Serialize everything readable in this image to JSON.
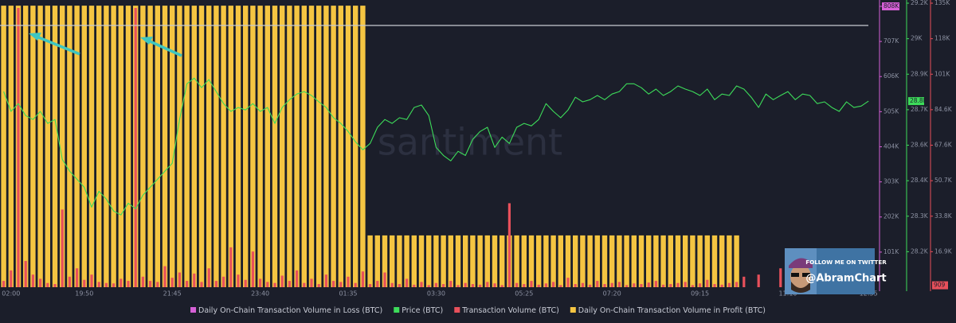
{
  "chart_data": {
    "type": "combo",
    "watermark": "santiment",
    "categories": [
      null,
      "02:00",
      null,
      null,
      null,
      null,
      null,
      null,
      null,
      null,
      null,
      "19:50",
      null,
      null,
      null,
      null,
      null,
      null,
      null,
      null,
      null,
      null,
      null,
      "21:45",
      null,
      null,
      null,
      null,
      null,
      null,
      null,
      null,
      null,
      null,
      null,
      "23:40",
      null,
      null,
      null,
      null,
      null,
      null,
      null,
      null,
      null,
      null,
      null,
      "01:35",
      null,
      null,
      null,
      null,
      null,
      null,
      null,
      null,
      null,
      null,
      null,
      "03:30",
      null,
      null,
      null,
      null,
      null,
      null,
      null,
      null,
      null,
      null,
      null,
      "05:25",
      null,
      null,
      null,
      null,
      null,
      null,
      null,
      null,
      null,
      null,
      null,
      "07:20",
      null,
      null,
      null,
      null,
      null,
      null,
      null,
      null,
      null,
      null,
      null,
      "09:15",
      null,
      null,
      null,
      null,
      null,
      null,
      null,
      null,
      null,
      null,
      null,
      "11:10",
      null,
      null,
      null,
      null,
      null,
      null,
      null,
      null,
      null,
      null,
      "12:55"
    ],
    "ylim": [
      0,
      826300
    ],
    "yticks": [
      {
        "value": 101000,
        "label": "101K"
      },
      {
        "value": 202000,
        "label": "202K"
      },
      {
        "value": 303000,
        "label": "303K"
      },
      {
        "value": 404000,
        "label": "404K"
      },
      {
        "value": 505000,
        "label": "505K"
      },
      {
        "value": 606000,
        "label": "606K"
      },
      {
        "value": 707000,
        "label": "707K"
      },
      {
        "value": 808000,
        "label": "808K"
      }
    ],
    "y2lim": [
      28010,
      29183
    ],
    "y2ticks": [
      {
        "value": 28155,
        "label": "28.2K"
      },
      {
        "value": 28300,
        "label": "28.3K"
      },
      {
        "value": 28445,
        "label": "28.4K"
      },
      {
        "value": 28590,
        "label": "28.6K"
      },
      {
        "value": 28735,
        "label": "28.7K"
      },
      {
        "value": 28880,
        "label": "28.9K"
      },
      {
        "value": 29025,
        "label": "29K"
      },
      {
        "value": 29170,
        "label": "29.2K"
      }
    ],
    "y3lim": [
      0,
      136800
    ],
    "y3ticks": [
      {
        "value": 16910,
        "label": "16.9K"
      },
      {
        "value": 33820,
        "label": "33.8K"
      },
      {
        "value": 50730,
        "label": "50.7K"
      },
      {
        "value": 67640,
        "label": "67.6K"
      },
      {
        "value": 84550,
        "label": "84.6K"
      },
      {
        "value": 101460,
        "label": "101K"
      },
      {
        "value": 118370,
        "label": "118K"
      },
      {
        "value": 135280,
        "label": "135K"
      }
    ],
    "series": [
      {
        "name": "Daily On-Chain Transaction Volume in Loss (BTC)",
        "type": "bar",
        "axis": "y",
        "color": "#d660d6",
        "values": [
          null,
          null,
          null,
          null,
          null,
          null,
          null,
          null,
          null,
          null,
          null,
          null,
          null,
          null,
          null,
          null,
          null,
          null,
          null,
          null,
          null,
          null,
          null,
          null,
          null,
          null,
          null,
          null,
          null,
          null,
          null,
          null,
          null,
          null,
          null,
          null,
          null,
          null,
          null,
          null,
          null,
          null,
          null,
          null,
          null,
          null,
          null,
          null,
          null,
          null,
          null,
          null,
          null,
          null,
          null,
          null,
          null,
          null,
          null,
          null,
          null,
          null,
          null,
          null,
          null,
          null,
          null,
          null,
          null,
          null,
          null,
          null,
          null,
          null,
          null,
          null,
          null,
          null,
          null,
          null,
          null,
          null,
          null,
          null,
          null,
          null,
          null,
          null,
          null,
          null,
          null,
          null,
          null,
          null,
          null,
          null,
          null,
          null,
          null,
          null,
          null,
          null,
          null,
          null,
          null,
          null,
          null,
          null,
          null,
          null,
          null,
          null,
          null,
          null,
          null,
          null,
          null,
          null,
          null
        ]
      },
      {
        "name": "Price (BTC)",
        "type": "line",
        "axis": "y2",
        "color": "#3ddc5a",
        "badge": {
          "value": 28770,
          "label": "28.8K"
        },
        "values": [
          28809,
          28728,
          28760,
          28711,
          28695,
          28728,
          28679,
          28695,
          28532,
          28484,
          28451,
          28418,
          28337,
          28402,
          28370,
          28321,
          28305,
          28353,
          28330,
          28386,
          28418,
          28451,
          28484,
          28516,
          28695,
          28841,
          28864,
          28825,
          28858,
          28809,
          28760,
          28728,
          28744,
          28734,
          28760,
          28728,
          28744,
          28679,
          28744,
          28776,
          28799,
          28809,
          28793,
          28767,
          28744,
          28702,
          28679,
          28646,
          28604,
          28571,
          28597,
          28663,
          28695,
          28679,
          28702,
          28695,
          28744,
          28754,
          28711,
          28581,
          28548,
          28526,
          28565,
          28548,
          28614,
          28646,
          28663,
          28581,
          28623,
          28597,
          28663,
          28679,
          28669,
          28695,
          28760,
          28728,
          28702,
          28734,
          28786,
          28767,
          28776,
          28793,
          28776,
          28799,
          28809,
          28841,
          28841,
          28825,
          28799,
          28819,
          28793,
          28809,
          28832,
          28819,
          28809,
          28793,
          28819,
          28776,
          28799,
          28793,
          28832,
          28819,
          28786,
          28744,
          28799,
          28776,
          28793,
          28809,
          28776,
          28799,
          28793,
          28760,
          28767,
          28744,
          28728,
          28767,
          28744,
          28750,
          28770
        ]
      },
      {
        "name": "Transaction Volume (BTC)",
        "type": "bar",
        "axis": "y3",
        "color": "#e8505b",
        "badge": 909,
        "values": [
          3000,
          8000,
          133000,
          12500,
          6000,
          4000,
          2000,
          1500,
          37000,
          5000,
          9000,
          3500,
          6000,
          2500,
          2000,
          1800,
          4000,
          3000,
          133000,
          5000,
          3000,
          2500,
          10000,
          4500,
          7000,
          3000,
          6500,
          2500,
          9000,
          3000,
          5000,
          19000,
          6000,
          3500,
          17000,
          4000,
          2500,
          2000,
          5500,
          3000,
          8000,
          2000,
          4000,
          1500,
          6000,
          3000,
          2500,
          5000,
          2000,
          7500,
          1500,
          3000,
          7000,
          2000,
          1500,
          4000,
          1200,
          2500,
          1000,
          2000,
          1500,
          3000,
          1000,
          2000,
          1500,
          1200,
          2500,
          1800,
          1000,
          40000,
          2000,
          1500,
          3000,
          1200,
          1800,
          2500,
          1000,
          4500,
          1500,
          2000,
          1200,
          3000,
          1500,
          2000,
          2500,
          1000,
          1800,
          1500,
          2200,
          3000,
          1200,
          1500,
          2000,
          2500,
          1000,
          1800,
          3500,
          1500,
          1200,
          2000,
          2500,
          5000,
          null,
          6000,
          null,
          null,
          9000,
          null,
          null,
          null,
          null,
          null,
          null,
          null,
          null,
          null,
          null,
          null,
          null
        ]
      },
      {
        "name": "Daily On-Chain Transaction Volume in Profit (BTC)",
        "type": "bar",
        "axis": "y",
        "color": "#f5c542",
        "values": [
          810000,
          810000,
          810000,
          810000,
          810000,
          810000,
          810000,
          810000,
          810000,
          810000,
          810000,
          810000,
          810000,
          810000,
          810000,
          810000,
          810000,
          810000,
          810000,
          810000,
          810000,
          810000,
          810000,
          810000,
          810000,
          810000,
          810000,
          810000,
          810000,
          810000,
          810000,
          810000,
          810000,
          810000,
          810000,
          810000,
          810000,
          810000,
          810000,
          810000,
          810000,
          810000,
          810000,
          810000,
          810000,
          810000,
          810000,
          810000,
          810000,
          810000,
          149000,
          149000,
          149000,
          149000,
          149000,
          149000,
          149000,
          149000,
          149000,
          149000,
          149000,
          149000,
          149000,
          149000,
          149000,
          149000,
          149000,
          149000,
          149000,
          149000,
          149000,
          149000,
          149000,
          149000,
          149000,
          149000,
          149000,
          149000,
          149000,
          149000,
          149000,
          149000,
          149000,
          149000,
          149000,
          149000,
          149000,
          149000,
          149000,
          149000,
          149000,
          149000,
          149000,
          149000,
          149000,
          149000,
          149000,
          149000,
          149000,
          149000,
          149000,
          null,
          null,
          null,
          null,
          null,
          null,
          null,
          null,
          null,
          null,
          null,
          null,
          null,
          null,
          null,
          null,
          null,
          null
        ]
      }
    ]
  },
  "overlay": {
    "line1": "FOLLOW ME ON TWITTER",
    "handle": "@AbramChart"
  }
}
